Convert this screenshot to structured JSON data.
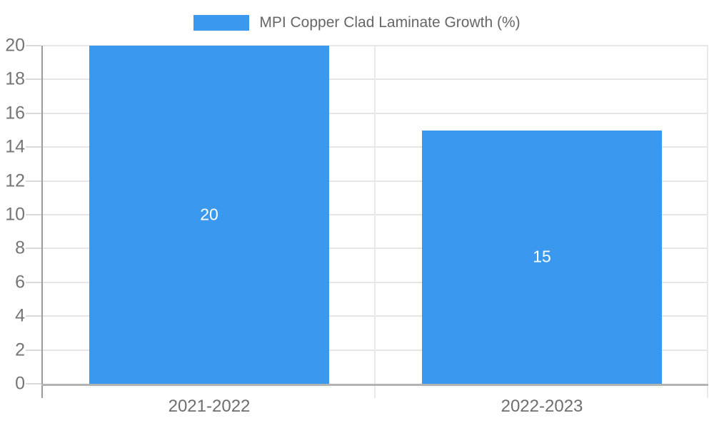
{
  "chart_data": {
    "type": "bar",
    "title": "",
    "legend": "MPI Copper Clad Laminate Growth (%)",
    "legend_position": "top-center",
    "categories": [
      "2021-2022",
      "2022-2023"
    ],
    "values": [
      20,
      15
    ],
    "xlabel": "",
    "ylabel": "",
    "ylim": [
      0,
      20
    ],
    "yticks": [
      0,
      2,
      4,
      6,
      8,
      10,
      12,
      14,
      16,
      18,
      20
    ],
    "grid": true,
    "bar_color": "#3A99EE",
    "value_label_color": "#ffffff",
    "axis_text_color": "#757575",
    "legend_text_color": "#666666"
  }
}
